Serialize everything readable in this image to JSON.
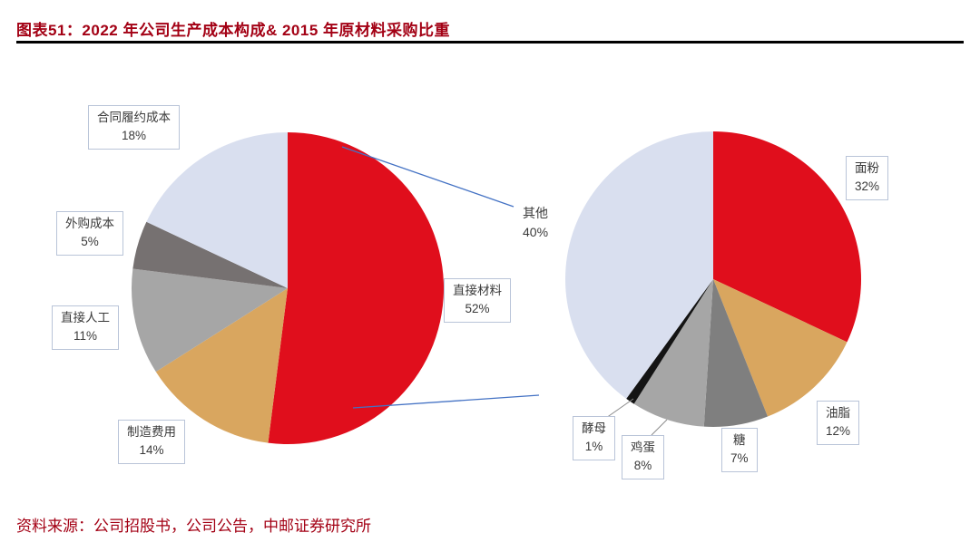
{
  "header": {
    "title": "图表51：2022 年公司生产成本构成& 2015 年原材料采购比重"
  },
  "footer": {
    "source": "资料来源：公司招股书，公司公告，中邮证券研究所"
  },
  "colors": {
    "title_red": "#A30014",
    "rule_black": "#000000",
    "leader_blue": "#4472C4",
    "leader_gray": "#8a8a8a",
    "label_border": "#B9C4D8"
  },
  "chart_data": [
    {
      "type": "pie",
      "title": "2022年公司生产成本构成",
      "start_angle_deg": 0,
      "direction": "clockwise",
      "legend_position": "callouts",
      "slices": [
        {
          "label": "直接材料",
          "pct": "52%",
          "value": 52,
          "color": "#E00E1C"
        },
        {
          "label": "制造费用",
          "pct": "14%",
          "value": 14,
          "color": "#D9A65F"
        },
        {
          "label": "直接人工",
          "pct": "11%",
          "value": 11,
          "color": "#A6A6A6"
        },
        {
          "label": "外购成本",
          "pct": "5%",
          "value": 5,
          "color": "#767171"
        },
        {
          "label": "合同履约成本",
          "pct": "18%",
          "value": 18,
          "color": "#D9DFEF"
        }
      ]
    },
    {
      "type": "pie",
      "title": "2015年原材料采购比重",
      "start_angle_deg": 0,
      "direction": "clockwise",
      "legend_position": "callouts",
      "slices": [
        {
          "label": "面粉",
          "pct": "32%",
          "value": 32,
          "color": "#E00E1C"
        },
        {
          "label": "油脂",
          "pct": "12%",
          "value": 12,
          "color": "#D9A65F"
        },
        {
          "label": "糖",
          "pct": "7%",
          "value": 7,
          "color": "#7F7F7F"
        },
        {
          "label": "鸡蛋",
          "pct": "8%",
          "value": 8,
          "color": "#A6A6A6"
        },
        {
          "label": "酵母",
          "pct": "1%",
          "value": 1,
          "color": "#141414"
        },
        {
          "label": "其他",
          "pct": "40%",
          "value": 40,
          "color": "#D9DFEF"
        }
      ]
    }
  ]
}
